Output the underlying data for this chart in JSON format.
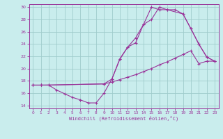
{
  "xlabel": "Windchill (Refroidissement éolien,°C)",
  "xlim": [
    -0.5,
    23.5
  ],
  "ylim": [
    13.5,
    30.5
  ],
  "xticks": [
    0,
    1,
    2,
    3,
    4,
    5,
    6,
    7,
    8,
    9,
    10,
    11,
    12,
    13,
    14,
    15,
    16,
    17,
    18,
    19,
    20,
    21,
    22,
    23
  ],
  "yticks": [
    14,
    16,
    18,
    20,
    22,
    24,
    26,
    28,
    30
  ],
  "bg_color": "#c9eded",
  "line_color": "#993399",
  "grid_color": "#a0cccc",
  "series": [
    {
      "x": [
        0,
        1,
        2,
        3,
        4,
        5,
        6,
        7,
        8,
        9,
        10,
        11,
        12,
        13,
        14,
        15,
        16,
        17,
        18,
        19,
        20,
        21,
        22,
        23
      ],
      "y": [
        17.3,
        17.3,
        17.3,
        16.5,
        15.9,
        15.3,
        14.9,
        14.4,
        14.4,
        16.0,
        18.3,
        21.6,
        23.5,
        24.2,
        27.2,
        28.0,
        30.0,
        29.6,
        29.6,
        28.9,
        26.5,
        24.0,
        21.9,
        21.2
      ]
    },
    {
      "x": [
        0,
        1,
        2,
        9,
        10,
        11,
        12,
        13,
        14,
        15,
        16,
        17,
        18,
        19,
        20,
        21,
        22,
        23
      ],
      "y": [
        17.3,
        17.3,
        17.3,
        17.5,
        17.8,
        18.2,
        18.6,
        19.0,
        19.5,
        20.0,
        20.6,
        21.1,
        21.7,
        22.3,
        22.9,
        20.8,
        21.2,
        21.2
      ]
    },
    {
      "x": [
        0,
        1,
        9,
        10,
        11,
        12,
        13,
        14,
        15,
        16,
        17,
        19,
        20,
        21,
        22,
        23
      ],
      "y": [
        17.3,
        17.3,
        17.5,
        18.3,
        21.5,
        23.5,
        25.0,
        27.2,
        30.0,
        29.6,
        29.6,
        28.9,
        26.5,
        24.0,
        21.9,
        21.2
      ]
    }
  ]
}
